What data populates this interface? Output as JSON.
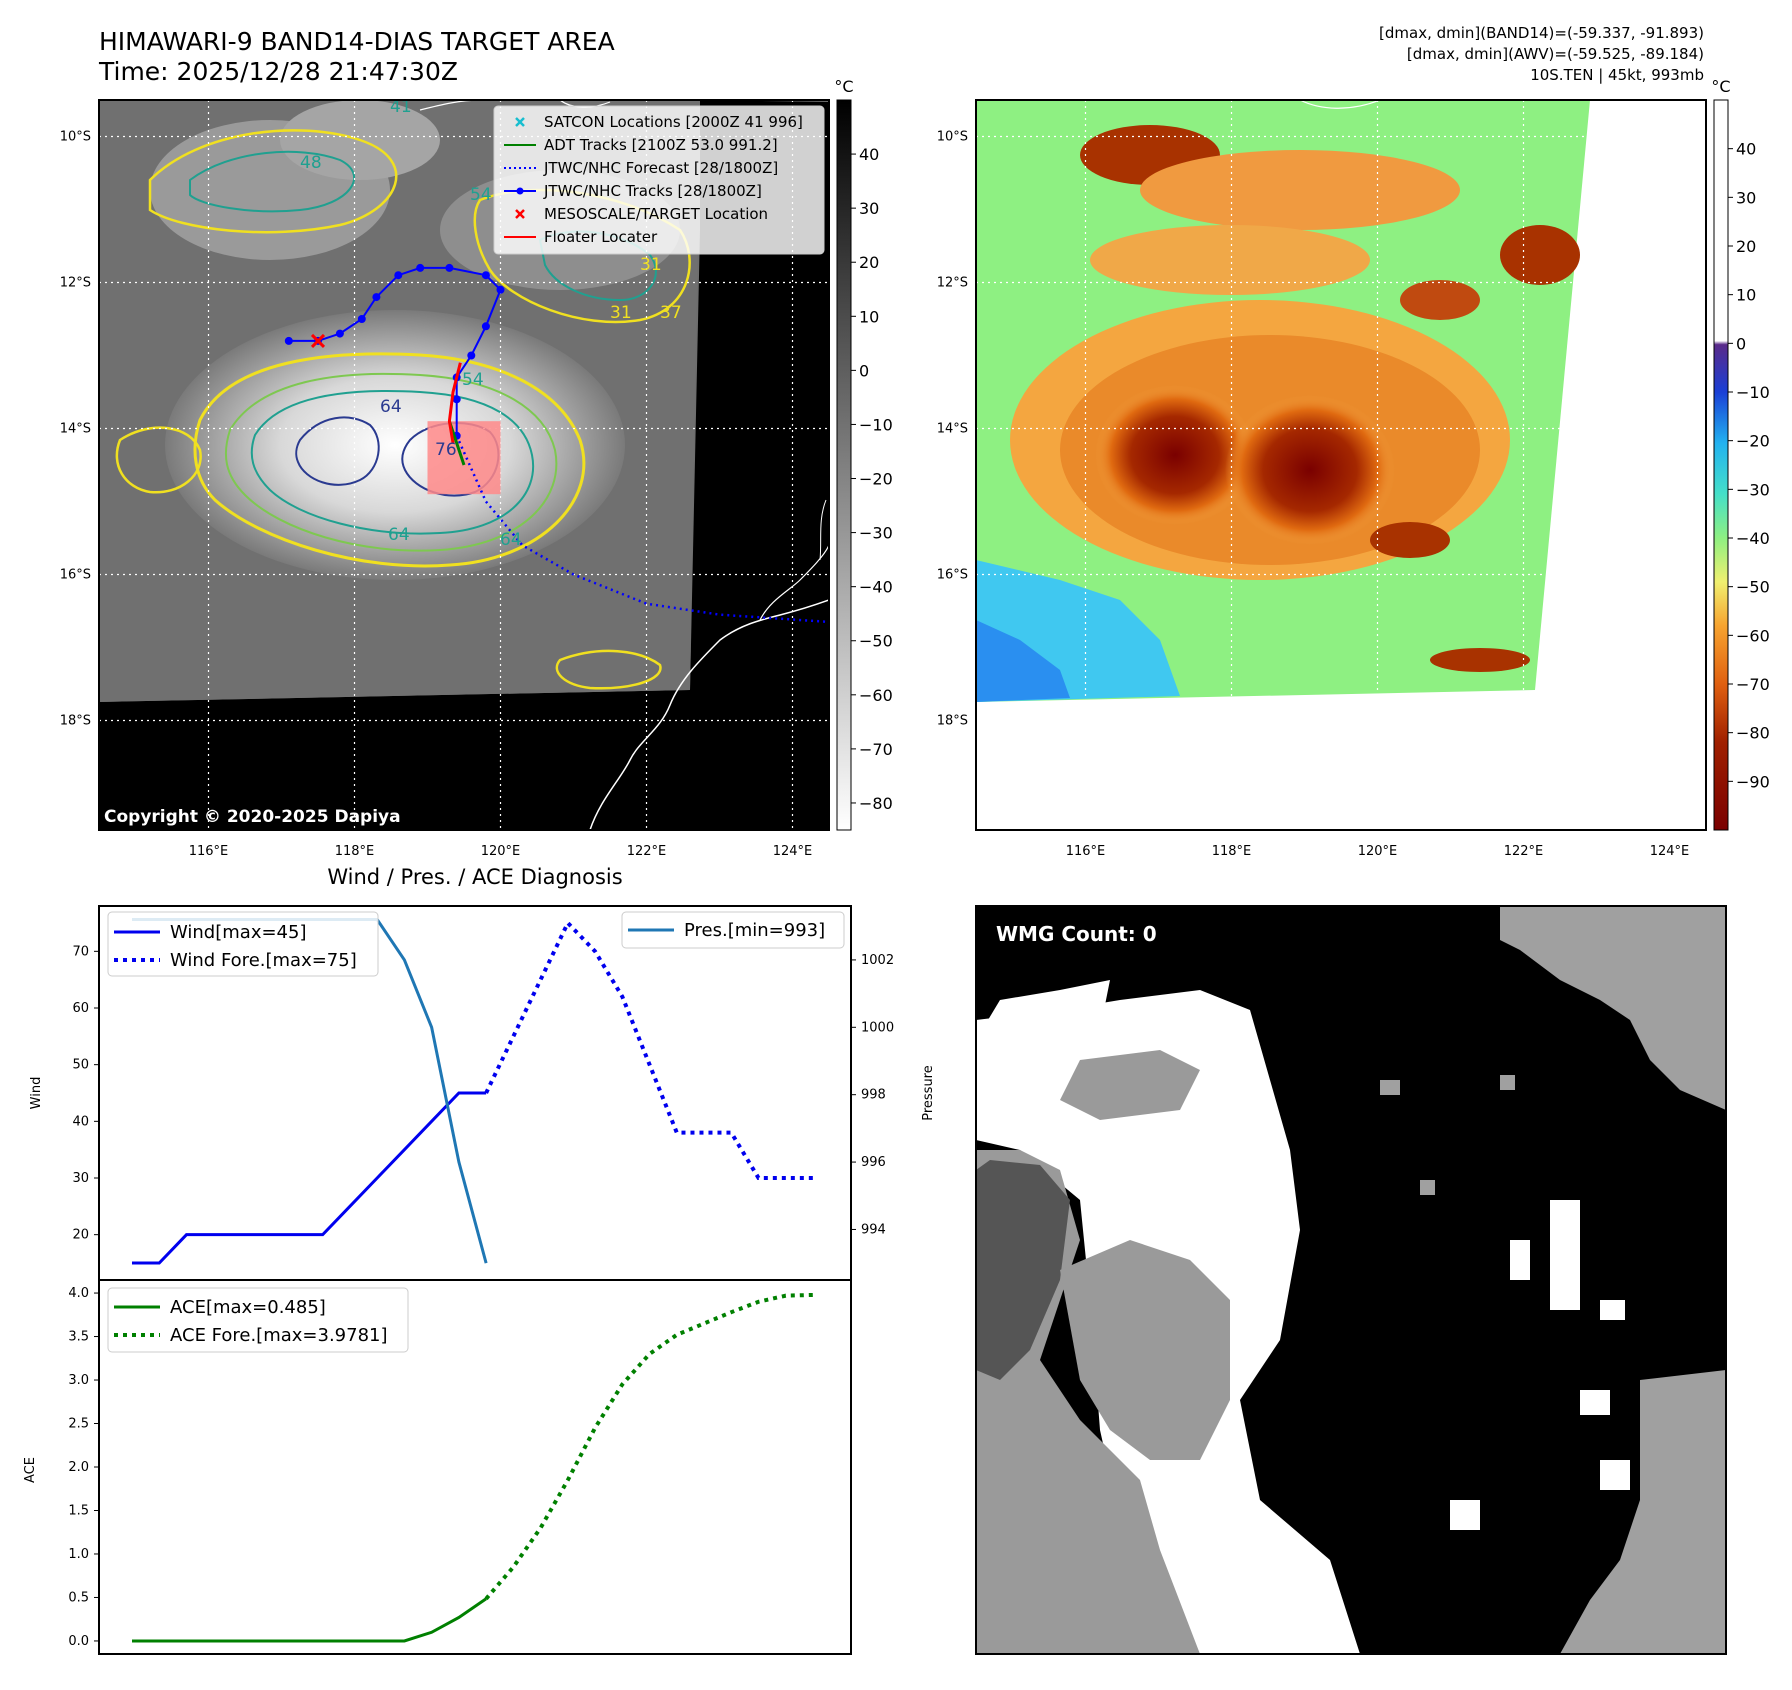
{
  "header": {
    "title_line1": "HIMAWARI-9 BAND14-DIAS TARGET AREA",
    "title_line2": "Time: 2025/12/28 21:47:30Z",
    "info_line1": "[dmax, dmin](BAND14)=(-59.337, -91.893)",
    "info_line2": "[dmax, dmin](AWV)=(-59.525, -89.184)",
    "info_line3": "10S.TEN | 45kt, 993mb"
  },
  "map_panel": {
    "lat_ticks": [
      "10°S",
      "12°S",
      "14°S",
      "16°S",
      "18°S"
    ],
    "lat_values": [
      -10,
      -12,
      -14,
      -16,
      -18
    ],
    "lon_ticks": [
      "116°E",
      "118°E",
      "120°E",
      "122°E",
      "124°E"
    ],
    "lon_values": [
      116,
      118,
      120,
      122,
      124
    ],
    "extent": {
      "lon_min": 114.5,
      "lon_max": 124.5,
      "lat_min": -19.5,
      "lat_max": -9.5
    },
    "copyright": "Copyright © 2020-2025 Dapiya",
    "contour_labels": [
      "54",
      "64",
      "64",
      "76",
      "64",
      "31",
      "37",
      "41",
      "31",
      "48",
      "54"
    ],
    "legend": [
      {
        "label": "SATCON Locations [2000Z 41 996]",
        "color": "#17becf",
        "marker": "x"
      },
      {
        "label": "ADT Tracks [2100Z 53.0 991.2]",
        "color": "#008000",
        "marker": "line"
      },
      {
        "label": "JTWC/NHC Forecast [28/1800Z]",
        "color": "#0000ff",
        "marker": "dotted"
      },
      {
        "label": "JTWC/NHC Tracks [28/1800Z]",
        "color": "#0000ff",
        "marker": "line-dot"
      },
      {
        "label": "MESOSCALE/TARGET Location",
        "color": "#ff0000",
        "marker": "x"
      },
      {
        "label": "Floater Locater",
        "color": "#ff0000",
        "marker": "line"
      }
    ],
    "jtwc_track": [
      [
        117.1,
        -12.8
      ],
      [
        117.5,
        -12.8
      ],
      [
        117.8,
        -12.7
      ],
      [
        118.1,
        -12.5
      ],
      [
        118.3,
        -12.2
      ],
      [
        118.6,
        -11.9
      ],
      [
        118.9,
        -11.8
      ],
      [
        119.3,
        -11.8
      ],
      [
        119.8,
        -11.9
      ],
      [
        120.0,
        -12.1
      ],
      [
        119.8,
        -12.6
      ],
      [
        119.6,
        -13.0
      ],
      [
        119.4,
        -13.3
      ],
      [
        119.4,
        -13.6
      ],
      [
        119.4,
        -14.1
      ]
    ],
    "jtwc_forecast": [
      [
        119.4,
        -14.1
      ],
      [
        119.8,
        -15.0
      ],
      [
        120.3,
        -15.6
      ],
      [
        121.0,
        -16.0
      ],
      [
        122.0,
        -16.4
      ],
      [
        123.0,
        -16.55
      ],
      [
        124.5,
        -16.65
      ]
    ],
    "adt_track": [
      [
        119.3,
        -13.9
      ],
      [
        119.4,
        -14.2
      ],
      [
        119.5,
        -14.5
      ]
    ],
    "floater": [
      [
        119.45,
        -13.1
      ],
      [
        119.35,
        -13.5
      ],
      [
        119.3,
        -13.9
      ],
      [
        119.35,
        -14.2
      ]
    ],
    "target": [
      117.5,
      -12.8
    ],
    "target_box": {
      "lon_min": 119.0,
      "lon_max": 120.0,
      "lat_min": -14.9,
      "lat_max": -13.9
    },
    "colorbar_unit": "°C",
    "colorbar_ticks": [
      40,
      30,
      20,
      10,
      0,
      -10,
      -20,
      -30,
      -40,
      -50,
      -60,
      -70,
      -80
    ],
    "colorbar_range": [
      50,
      -85
    ]
  },
  "awv_panel": {
    "colorbar_unit": "°C",
    "colorbar_ticks": [
      40,
      30,
      20,
      10,
      0,
      -10,
      -20,
      -30,
      -40,
      -50,
      -60,
      -70,
      -80,
      -90
    ],
    "colorbar_range": [
      50,
      -100
    ]
  },
  "chart_data": [
    {
      "type": "line",
      "title": "Wind / Pres. / ACE Diagnosis",
      "ylabel": "Wind",
      "y2label": "Pressure",
      "ylim": [
        12,
        78
      ],
      "y2lim": [
        992.5,
        1003.6
      ],
      "yticks": [
        20,
        30,
        40,
        50,
        60,
        70
      ],
      "y2ticks": [
        994,
        996,
        998,
        1000,
        1002
      ],
      "x_range": [
        0,
        26
      ],
      "series": [
        {
          "name": "Wind[max=45]",
          "axis": "left",
          "style": "solid",
          "color": "#0000ee",
          "x": [
            0,
            1,
            2,
            3,
            4,
            5,
            6,
            7,
            8,
            9,
            10,
            11,
            12,
            13
          ],
          "values": [
            15,
            15,
            20,
            20,
            20,
            20,
            20,
            20,
            25,
            30,
            35,
            40,
            45,
            45
          ]
        },
        {
          "name": "Wind Fore.[max=75]",
          "axis": "left",
          "style": "dotted",
          "color": "#0000ee",
          "x": [
            13,
            14,
            15,
            16,
            17,
            18,
            19,
            20,
            21,
            22,
            23,
            24,
            25
          ],
          "values": [
            45,
            55,
            65,
            75,
            70,
            62,
            50,
            38,
            38,
            38,
            30,
            30,
            30
          ]
        },
        {
          "name": "Pres.[min=993]",
          "axis": "right",
          "style": "solid",
          "color": "#1f77b4",
          "x": [
            0,
            9,
            10,
            11,
            12,
            13
          ],
          "values": [
            1003.2,
            1003.2,
            1002.0,
            1000.0,
            996.0,
            993.0
          ]
        }
      ]
    },
    {
      "type": "line",
      "ylabel": "ACE",
      "ylim": [
        -0.15,
        4.15
      ],
      "yticks": [
        "0.0",
        "0.5",
        "1.0",
        "1.5",
        "2.0",
        "2.5",
        "3.0",
        "3.5",
        "4.0"
      ],
      "x_range": [
        0,
        26
      ],
      "series": [
        {
          "name": "ACE[max=0.485]",
          "style": "solid",
          "color": "#008000",
          "x": [
            0,
            10,
            11,
            12,
            13
          ],
          "values": [
            0,
            0,
            0.1,
            0.27,
            0.485
          ]
        },
        {
          "name": "ACE Fore.[max=3.9781]",
          "style": "dotted",
          "color": "#008000",
          "x": [
            13,
            14,
            15,
            16,
            17,
            18,
            19,
            20,
            21,
            22,
            23,
            24,
            25
          ],
          "values": [
            0.485,
            0.85,
            1.3,
            1.85,
            2.45,
            2.95,
            3.3,
            3.52,
            3.65,
            3.78,
            3.9,
            3.97,
            3.9781
          ]
        }
      ]
    }
  ],
  "wmg_panel": {
    "label": "WMG Count: 0"
  }
}
